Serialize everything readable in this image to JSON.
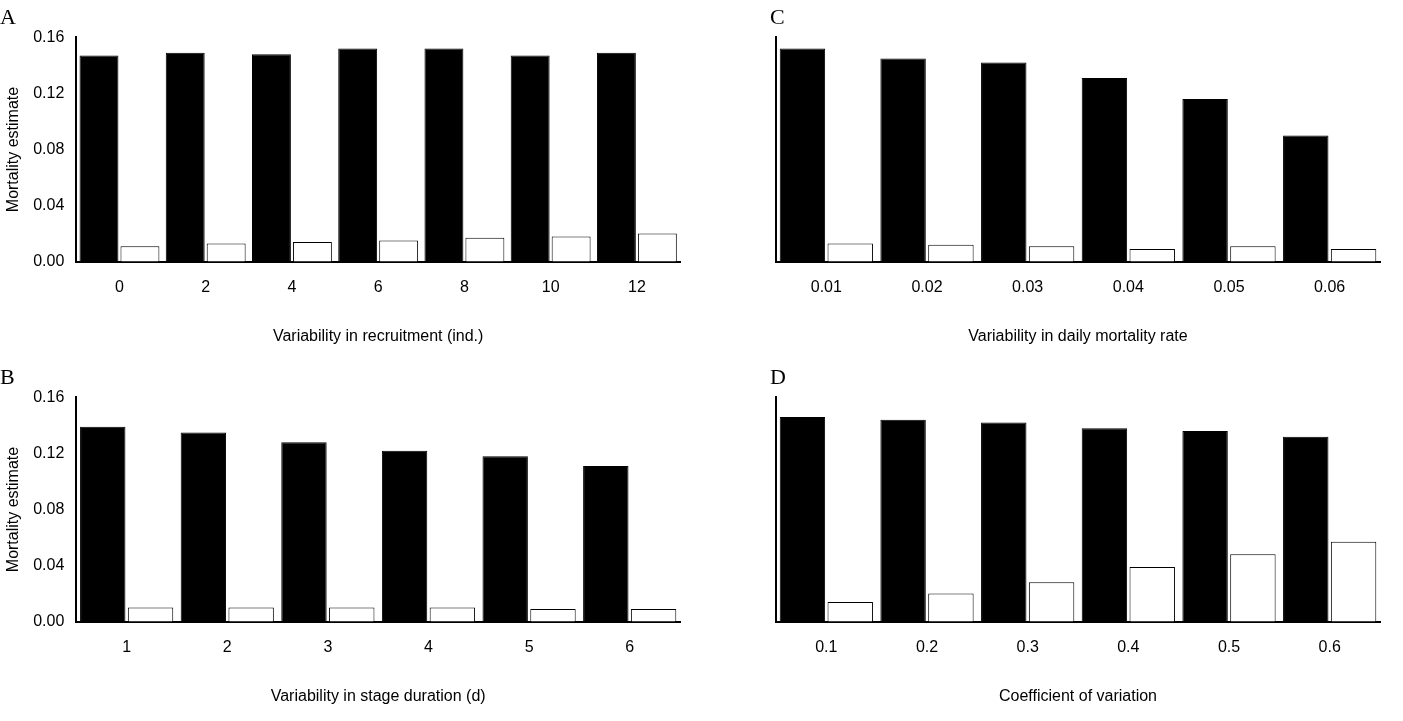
{
  "chart_data": [
    {
      "type": "bar",
      "title": "A",
      "xlabel": "Variability in recruitment (ind.)",
      "ylabel": "Mortality estimate",
      "categories": [
        "0",
        "2",
        "4",
        "6",
        "8",
        "10",
        "12"
      ],
      "ylim": [
        0,
        0.16
      ],
      "yticks": [
        {
          "value": 0,
          "label": "0.00"
        },
        0.04,
        0.08,
        0.12,
        0.16
      ],
      "grid": false,
      "series": [
        {
          "color": "#000000",
          "values": [
            0.147,
            0.149,
            0.148,
            0.152,
            0.152,
            0.147,
            0.149
          ]
        },
        {
          "color": "#ffffff",
          "values": [
            0.011,
            0.013,
            0.014,
            0.015,
            0.017,
            0.018,
            0.02
          ]
        }
      ]
    },
    {
      "type": "bar",
      "title": "C",
      "xlabel": "Variability in daily mortality rate",
      "categories": [
        "0.01",
        "0.02",
        "0.03",
        "0.04",
        "0.05",
        "0.06"
      ],
      "ylim": [
        0,
        0.16
      ],
      "yticks": [
        0,
        0.04,
        0.08,
        0.12,
        0.16
      ],
      "tick_labels": "x",
      "grid": false,
      "series": [
        {
          "color": "#000000",
          "values": [
            0.152,
            0.145,
            0.142,
            0.131,
            0.116,
            0.09
          ]
        },
        {
          "color": "#ffffff",
          "values": [
            0.013,
            0.012,
            0.011,
            0.009,
            0.011,
            0.009
          ]
        }
      ]
    },
    {
      "type": "bar",
      "title": "B",
      "xlabel": "Variability in stage duration (d)",
      "ylabel": "Mortality estimate",
      "categories": [
        "1",
        "2",
        "3",
        "4",
        "5",
        "6"
      ],
      "ylim": [
        0,
        0.16
      ],
      "yticks": [
        {
          "value": 0,
          "label": "0.00"
        },
        0.04,
        0.08,
        0.12,
        0.16
      ],
      "grid": false,
      "series": [
        {
          "color": "#000000",
          "values": [
            0.139,
            0.135,
            0.128,
            0.122,
            0.118,
            0.111
          ]
        },
        {
          "color": "#ffffff",
          "values": [
            0.01,
            0.01,
            0.01,
            0.01,
            0.009,
            0.009
          ]
        }
      ]
    },
    {
      "type": "bar",
      "title": "D",
      "xlabel": "Coefficient of variation",
      "categories": [
        "0.1",
        "0.2",
        "0.3",
        "0.4",
        "0.5",
        "0.6"
      ],
      "ylim": [
        0,
        0.16
      ],
      "yticks": [
        0,
        0.04,
        0.08,
        0.12,
        0.16
      ],
      "tick_labels": "x",
      "grid": false,
      "series": [
        {
          "color": "#000000",
          "values": [
            0.146,
            0.144,
            0.142,
            0.138,
            0.136,
            0.132
          ]
        },
        {
          "color": "#ffffff",
          "values": [
            0.014,
            0.02,
            0.028,
            0.039,
            0.048,
            0.057
          ]
        }
      ]
    }
  ]
}
